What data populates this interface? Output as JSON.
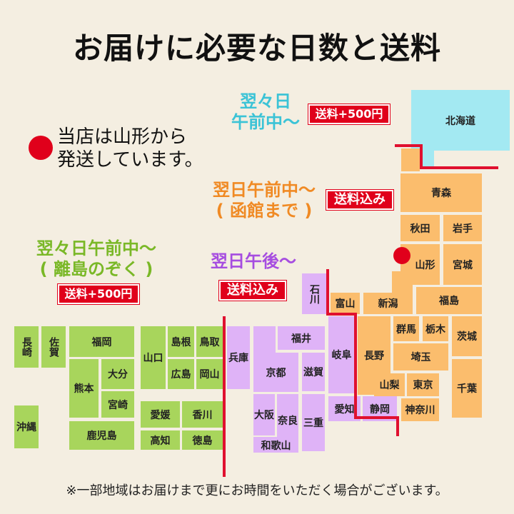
{
  "title": "お届けに必要な日数と送料",
  "note": {
    "line1": "当店は山形から",
    "line2": "発送しています。"
  },
  "zones": {
    "hokkaido": {
      "line1": "翌々日",
      "line2": "午前中～",
      "fee": "送料+500円",
      "color": "#3bc3d6"
    },
    "tohoku_kanto": {
      "line1": "翌日午前中～",
      "line2": "( 函館まで )",
      "fee": "送料込み",
      "color": "#f08a24"
    },
    "west": {
      "line1": "翌々日午前中～",
      "line2": "( 離島のぞく )",
      "fee": "送料+500円",
      "color": "#7ab827"
    },
    "kansai_chubu": {
      "line1": "翌日午後～",
      "fee": "送料込み",
      "color": "#a64de0"
    }
  },
  "prefectures": [
    "北海道",
    "青森",
    "秋田",
    "岩手",
    "山形",
    "宮城",
    "福島",
    "新潟",
    "富山",
    "石川",
    "群馬",
    "栃木",
    "茨城",
    "長野",
    "埼玉",
    "山梨",
    "東京",
    "千葉",
    "神奈川",
    "静岡",
    "愛知",
    "岐阜",
    "福井",
    "滋賀",
    "京都",
    "兵庫",
    "大阪",
    "奈良",
    "和歌山",
    "三重",
    "長崎",
    "佐賀",
    "福岡",
    "熊本",
    "大分",
    "宮崎",
    "鹿児島",
    "沖縄",
    "山口",
    "島根",
    "鳥取",
    "広島",
    "岡山",
    "愛媛",
    "香川",
    "高知",
    "徳島"
  ],
  "footer": "※一部地域はお届けまで更にお時間をいただく場合がございます。"
}
